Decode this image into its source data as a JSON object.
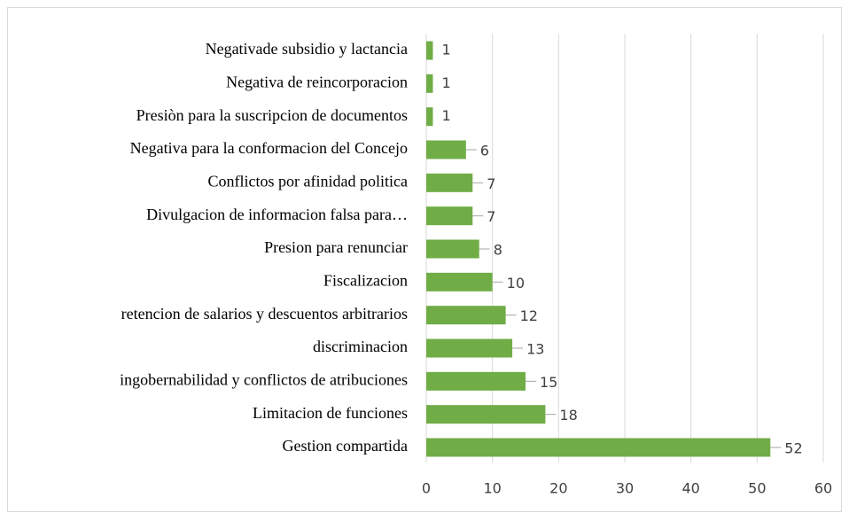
{
  "chart_data": {
    "type": "bar",
    "orientation": "horizontal",
    "categories": [
      "Negativade subsidio y lactancia",
      "Negativa de reincorporacion",
      "Presiòn para la suscripcion de documentos",
      "Negativa para la conformacion del Concejo",
      "Conflictos por afinidad politica",
      "Divulgacion de informacion falsa para…",
      "Presion para renunciar",
      "Fiscalizacion",
      "retencion de salarios y descuentos arbitrarios",
      "discriminacion",
      "ingobernabilidad y conflictos de atribuciones",
      "Limitacion de funciones",
      "Gestion compartida"
    ],
    "values": [
      1,
      1,
      1,
      6,
      7,
      7,
      8,
      10,
      12,
      13,
      15,
      18,
      52
    ],
    "color": "#70ad47",
    "xlim": [
      0,
      60
    ],
    "xticks": [
      0,
      10,
      20,
      30,
      40,
      50,
      60
    ],
    "grid": true
  }
}
